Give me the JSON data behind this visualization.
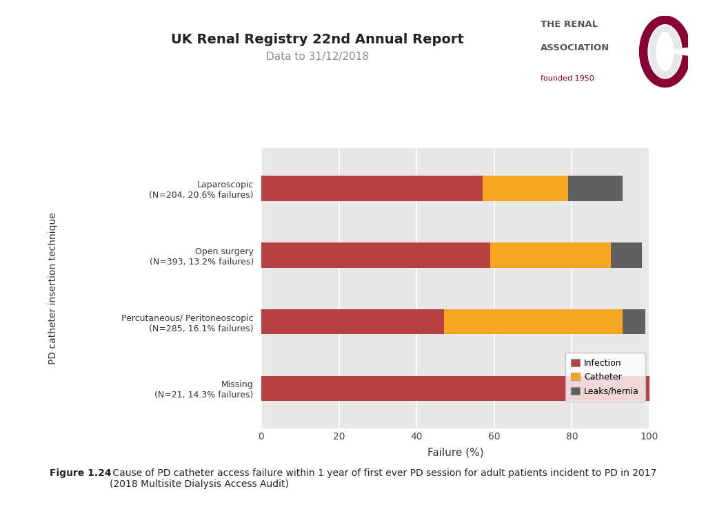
{
  "title": "UK Renal Registry 22nd Annual Report",
  "subtitle": "Data to 31/12/2018",
  "xlabel": "Failure (%)",
  "ylabel": "PD catheter insertion technique",
  "categories": [
    "Missing\n(N=21, 14.3% failures)",
    "Percutaneous/ Peritoneoscopic\n(N=285, 16.1% failures)",
    "Open surgery\n(N=393, 13.2% failures)",
    "Laparoscopic\n(N=204, 20.6% failures)"
  ],
  "infection": [
    100.0,
    47.0,
    59.0,
    57.0
  ],
  "catheter": [
    0.0,
    46.0,
    31.0,
    22.0
  ],
  "leaks_hernia": [
    0.0,
    6.0,
    8.0,
    14.0
  ],
  "colors": {
    "infection": "#b5403f",
    "catheter": "#f5a623",
    "leaks_hernia": "#606060"
  },
  "xlim": [
    0,
    100
  ],
  "xticks": [
    0,
    20,
    40,
    60,
    80,
    100
  ],
  "bg_color": "#e8e8e8",
  "bar_height": 0.38,
  "figsize": [
    10.24,
    7.68
  ],
  "dpi": 100,
  "title_fontsize": 14,
  "subtitle_fontsize": 11,
  "xlabel_fontsize": 11,
  "ytick_fontsize": 9,
  "xtick_fontsize": 10,
  "legend_fontsize": 9,
  "caption_bold": "Figure 1.24",
  "caption_rest": " Cause of PD catheter access failure within 1 year of first ever PD session for adult patients incident to PD in 2017\n(2018 Multisite Dialysis Access Audit)",
  "logo_text1": "THE RENAL",
  "logo_text2": "ASSOCIATION",
  "logo_text3": "founded 1950",
  "logo_color": "#555555",
  "logo_founded_color": "#8b0033"
}
